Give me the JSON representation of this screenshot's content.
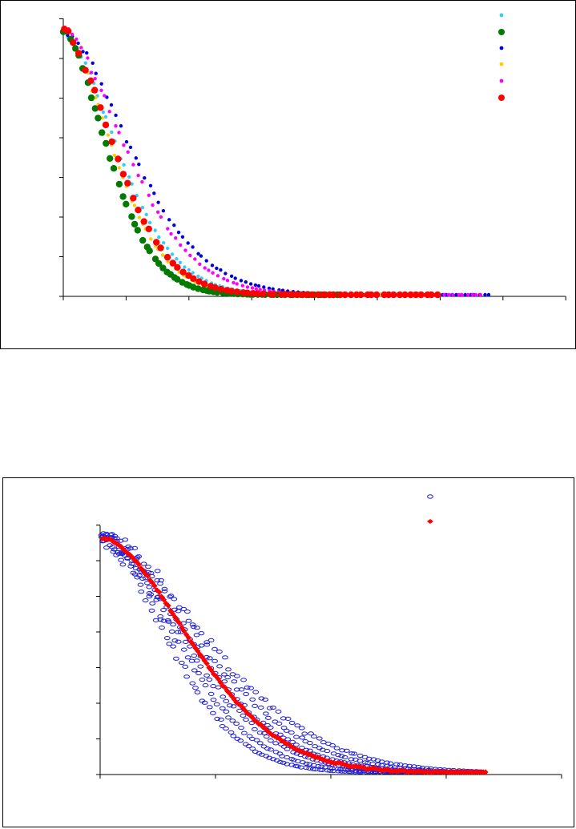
{
  "colors": {
    "cyan": "#33ccff",
    "green": "#007a00",
    "blue": "#0000dd",
    "yellow": "#ffcc00",
    "magenta": "#ff00ff",
    "red": "#ff0000",
    "blueOpen": "#1f1fd6"
  },
  "chart_data": [
    {
      "type": "scatter",
      "title": "",
      "xlabel": "",
      "ylabel": "",
      "legend_position": "top-right",
      "grid": false,
      "series": [
        {
          "color": "#33ccff",
          "marker": "small-dot",
          "decay": 64,
          "x_end": 560,
          "spread": 1.05
        },
        {
          "color": "#007a00",
          "marker": "large-dot",
          "decay": 52,
          "x_end": 420,
          "spread": 0.92
        },
        {
          "color": "#0000dd",
          "marker": "small-dot",
          "decay": 80,
          "x_end": 610,
          "spread": 1.25
        },
        {
          "color": "#ffcc00",
          "marker": "small-dot",
          "decay": 58,
          "x_end": 520,
          "spread": 0.97
        },
        {
          "color": "#ff00ff",
          "marker": "small-dot",
          "decay": 74,
          "x_end": 600,
          "spread": 1.18
        },
        {
          "color": "#ff0000",
          "marker": "large-dot",
          "decay": 60,
          "x_end": 545,
          "spread": 1.0
        }
      ]
    },
    {
      "type": "scatter",
      "title": "",
      "xlabel": "",
      "ylabel": "",
      "legend_position": "top-right",
      "grid": false,
      "series": [
        {
          "color": "#1f1fd6",
          "marker": "open-ellipse"
        },
        {
          "color": "#ff0000",
          "marker": "filled-diamond"
        }
      ]
    }
  ]
}
